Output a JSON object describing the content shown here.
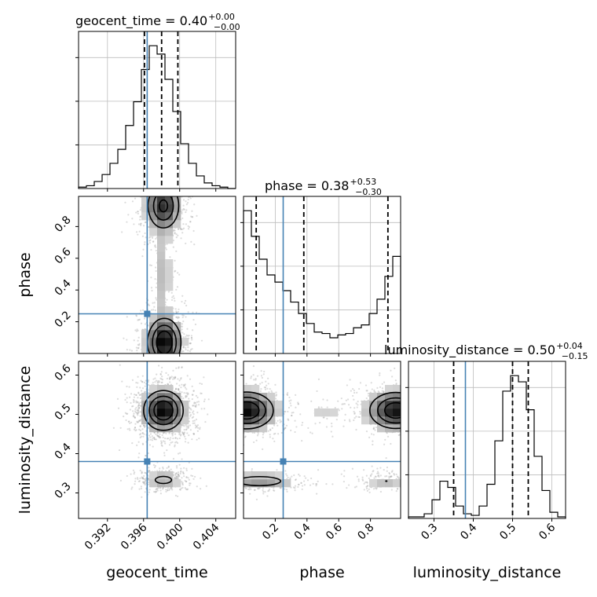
{
  "chart_data": {
    "type": "corner",
    "parameters": [
      "geocent_time",
      "phase",
      "luminosity_distance"
    ],
    "truths": {
      "geocent_time": 0.3964,
      "phase": 0.25,
      "luminosity_distance": 0.38
    },
    "truth_color": "#4682b4",
    "ranges": {
      "geocent_time": [
        0.3888,
        0.4062
      ],
      "phase": [
        0.0,
        0.99
      ],
      "luminosity_distance": [
        0.235,
        0.635
      ]
    },
    "titles": [
      {
        "param": "geocent_time",
        "median_text": "geocent_time = 0.40",
        "plus": "+0.00",
        "minus": "−0.00"
      },
      {
        "param": "phase",
        "median_text": "phase = 0.38",
        "plus": "+0.53",
        "minus": "−0.30"
      },
      {
        "param": "luminosity_distance",
        "median_text": "luminosity_distance = 0.50",
        "plus": "+0.04",
        "minus": "−0.15"
      }
    ],
    "axis_labels": {
      "x": [
        "geocent_time",
        "phase",
        "luminosity_distance"
      ],
      "y": [
        "phase",
        "luminosity_distance"
      ]
    },
    "ticks": {
      "geocent_time": [
        "0.392",
        "0.396",
        "0.400",
        "0.404"
      ],
      "phase": [
        "0.2",
        "0.4",
        "0.6",
        "0.8"
      ],
      "luminosity_distance": [
        "0.3",
        "0.4",
        "0.5",
        "0.6"
      ]
    },
    "histograms": {
      "geocent_time": {
        "bin_edges": [
          0.3888,
          0.38967,
          0.39054,
          0.39141,
          0.39228,
          0.39315,
          0.39402,
          0.39489,
          0.39576,
          0.39663,
          0.3975,
          0.39837,
          0.39924,
          0.40011,
          0.40098,
          0.40185,
          0.40272,
          0.40359,
          0.40446,
          0.40533,
          0.4062
        ],
        "counts": [
          1,
          2,
          5,
          10,
          18,
          28,
          45,
          62,
          85,
          102,
          96,
          78,
          55,
          32,
          18,
          9,
          4,
          2,
          1,
          0
        ],
        "quantiles": [
          0.3961,
          0.398,
          0.3998
        ]
      },
      "phase": {
        "bin_edges": [
          0.0,
          0.0495,
          0.099,
          0.1485,
          0.198,
          0.2475,
          0.297,
          0.3465,
          0.396,
          0.4455,
          0.495,
          0.5445,
          0.594,
          0.6435,
          0.693,
          0.7425,
          0.792,
          0.8415,
          0.891,
          0.9405,
          0.99
        ],
        "counts": [
          100,
          82,
          66,
          55,
          50,
          44,
          36,
          28,
          21,
          15,
          14,
          11,
          13,
          14,
          18,
          20,
          28,
          38,
          54,
          68
        ],
        "quantiles": [
          0.08,
          0.38,
          0.91
        ]
      },
      "luminosity_distance": {
        "bin_edges": [
          0.235,
          0.255,
          0.275,
          0.295,
          0.315,
          0.335,
          0.355,
          0.375,
          0.395,
          0.415,
          0.435,
          0.455,
          0.475,
          0.495,
          0.515,
          0.535,
          0.555,
          0.575,
          0.595,
          0.615,
          0.635
        ],
        "counts": [
          1,
          1,
          3,
          12,
          24,
          20,
          8,
          3,
          2,
          8,
          22,
          50,
          82,
          92,
          88,
          70,
          40,
          18,
          4,
          1
        ],
        "quantiles": [
          0.35,
          0.5,
          0.54
        ]
      }
    },
    "density_blobs": {
      "phase_vs_geocent_time": [
        {
          "x": 0.3983,
          "y": 0.07,
          "sx": 0.0011,
          "sy": 0.09,
          "w": 1.0
        },
        {
          "x": 0.3982,
          "y": 0.93,
          "sx": 0.0011,
          "sy": 0.09,
          "w": 0.8
        },
        {
          "x": 0.3981,
          "y": 0.5,
          "sx": 0.0007,
          "sy": 0.22,
          "w": 0.22
        }
      ],
      "luminosity_distance_vs_geocent_time": [
        {
          "x": 0.3982,
          "y": 0.51,
          "sx": 0.0013,
          "sy": 0.03,
          "w": 1.0
        },
        {
          "x": 0.3982,
          "y": 0.333,
          "sx": 0.0012,
          "sy": 0.012,
          "w": 0.32
        }
      ],
      "luminosity_distance_vs_phase": [
        {
          "x": 0.02,
          "y": 0.51,
          "sx": 0.1,
          "sy": 0.028,
          "w": 0.9
        },
        {
          "x": 0.96,
          "y": 0.51,
          "sx": 0.1,
          "sy": 0.028,
          "w": 0.85
        },
        {
          "x": 0.5,
          "y": 0.5,
          "sx": 0.16,
          "sy": 0.022,
          "w": 0.12
        },
        {
          "x": 0.1,
          "y": 0.33,
          "sx": 0.14,
          "sy": 0.012,
          "w": 0.35
        },
        {
          "x": 0.9,
          "y": 0.33,
          "sx": 0.08,
          "sy": 0.012,
          "w": 0.2
        }
      ]
    },
    "grid": true,
    "contour_levels": [
      0.25,
      0.5,
      0.75
    ]
  }
}
